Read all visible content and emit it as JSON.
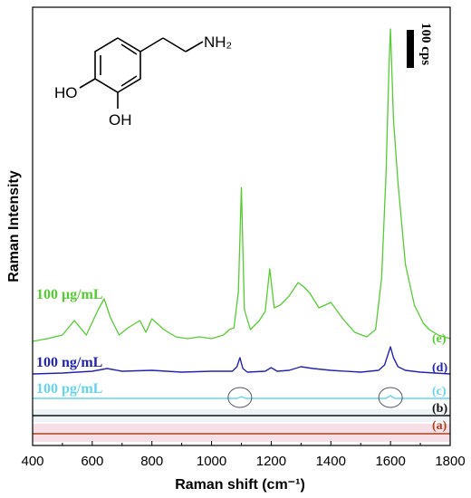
{
  "chart_data": {
    "type": "line",
    "xlabel": "Raman shift (cm⁻¹)",
    "ylabel": "Raman Intensity",
    "xlim": [
      400,
      1800
    ],
    "x_ticks": [
      "400",
      "600",
      "800",
      "1000",
      "1200",
      "1400",
      "1600",
      "1800"
    ],
    "scale_bar": "100 cps",
    "structure_labels": {
      "amine": "NH₂",
      "hydroxyl_1": "HO",
      "hydroxyl_2": "OH"
    },
    "series": [
      {
        "name": "100 μg/mL",
        "tag": "(e)",
        "color": "#55cc33",
        "baseline": 0,
        "x": [
          400,
          450,
          500,
          540,
          580,
          620,
          640,
          660,
          690,
          720,
          760,
          780,
          800,
          840,
          880,
          920,
          960,
          1000,
          1040,
          1060,
          1075,
          1090,
          1100,
          1110,
          1130,
          1160,
          1180,
          1195,
          1210,
          1230,
          1260,
          1290,
          1310,
          1330,
          1360,
          1400,
          1440,
          1480,
          1520,
          1550,
          1570,
          1585,
          1595,
          1600,
          1610,
          1625,
          1650,
          1680,
          1710,
          1730,
          1760,
          1800
        ],
        "y": [
          5,
          8,
          12,
          28,
          12,
          40,
          52,
          32,
          12,
          20,
          28,
          15,
          30,
          18,
          10,
          8,
          10,
          8,
          12,
          18,
          20,
          60,
          175,
          40,
          18,
          28,
          38,
          85,
          42,
          45,
          55,
          70,
          65,
          58,
          42,
          48,
          30,
          15,
          10,
          18,
          75,
          190,
          310,
          350,
          250,
          180,
          90,
          45,
          25,
          18,
          12,
          8
        ]
      },
      {
        "name": "100 ng/mL",
        "tag": "(d)",
        "color": "#2424b0",
        "baseline": 0,
        "x": [
          400,
          500,
          600,
          650,
          700,
          800,
          900,
          1000,
          1070,
          1085,
          1095,
          1105,
          1120,
          1180,
          1200,
          1220,
          1260,
          1300,
          1340,
          1400,
          1500,
          1560,
          1580,
          1592,
          1600,
          1610,
          1625,
          1650,
          1700,
          1800
        ],
        "y": [
          0,
          1,
          3,
          6,
          3,
          4,
          2,
          3,
          3,
          8,
          18,
          6,
          2,
          3,
          7,
          3,
          4,
          8,
          6,
          4,
          2,
          4,
          10,
          22,
          30,
          18,
          8,
          4,
          2,
          0
        ]
      },
      {
        "name": "100 pg/mL",
        "tag": "(c)",
        "color": "#66d4ee",
        "baseline": 0,
        "x": [
          400,
          800,
          1085,
          1100,
          1115,
          1500,
          1585,
          1600,
          1615,
          1800
        ],
        "y": [
          0,
          0,
          0,
          2,
          0,
          0,
          0,
          3,
          0,
          0
        ]
      },
      {
        "name": "",
        "tag": "(b)",
        "color": "#111111",
        "baseline": 0,
        "x": [
          400,
          1800
        ],
        "y": [
          0,
          0
        ]
      },
      {
        "name": "",
        "tag": "(a)",
        "color": "#aa4422",
        "baseline": 0,
        "x": [
          400,
          1800
        ],
        "y": [
          0,
          0
        ]
      }
    ],
    "annotations": [
      {
        "shape": "ellipse",
        "x": 1095,
        "series": "(c)"
      },
      {
        "shape": "ellipse",
        "x": 1600,
        "series": "(c)"
      }
    ],
    "colors": {
      "band_a": "#f6dfe6",
      "band_b": "#eef3f6"
    }
  }
}
